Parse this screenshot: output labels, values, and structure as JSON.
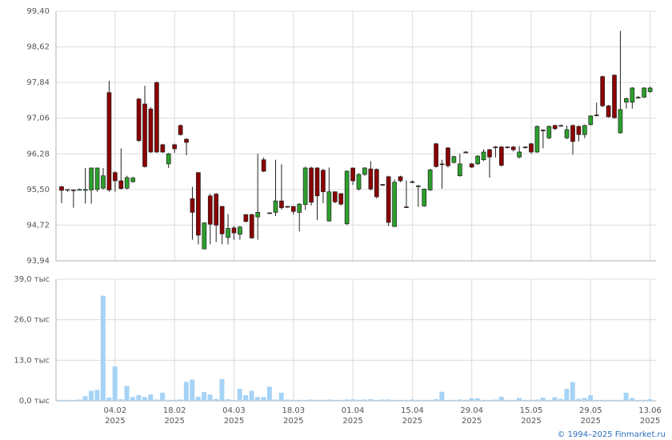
{
  "chart_data": {
    "type": "candlestick",
    "categories": [
      null,
      null,
      null,
      null,
      null,
      null,
      null,
      null,
      null,
      "04.02",
      null,
      null,
      null,
      null,
      null,
      null,
      null,
      null,
      null,
      "18.02",
      null,
      null,
      null,
      null,
      null,
      null,
      null,
      null,
      null,
      "04.03",
      null,
      null,
      null,
      null,
      null,
      null,
      null,
      null,
      null,
      "18.03",
      null,
      null,
      null,
      null,
      null,
      null,
      null,
      null,
      null,
      "01.04",
      null,
      null,
      null,
      null,
      null,
      null,
      null,
      null,
      null,
      "15.04",
      null,
      null,
      null,
      null,
      null,
      null,
      null,
      null,
      null,
      "29.04",
      null,
      null,
      null,
      null,
      null,
      null,
      null,
      null,
      null,
      "15.05",
      null,
      null,
      null,
      null,
      null,
      null,
      null,
      null,
      null,
      "29.05",
      null,
      null,
      null,
      null,
      null,
      null,
      null,
      null,
      null,
      "13.06"
    ],
    "x_sublabel": "2025",
    "open": [
      95.56,
      95.5,
      95.49,
      95.5,
      95.48,
      95.49,
      95.5,
      95.53,
      97.62,
      95.87,
      95.69,
      95.53,
      95.67,
      97.48,
      97.37,
      97.26,
      97.84,
      96.48,
      96.06,
      96.48,
      96.9,
      96.6,
      95.3,
      95.87,
      94.2,
      95.36,
      95.4,
      95.13,
      94.45,
      94.66,
      94.52,
      94.95,
      94.95,
      94.9,
      96.15,
      94.99,
      95.0,
      95.25,
      95.13,
      95.13,
      95.0,
      95.17,
      95.97,
      95.97,
      95.92,
      94.81,
      95.45,
      95.41,
      94.75,
      95.97,
      95.51,
      95.83,
      95.95,
      95.94,
      95.61,
      95.78,
      94.69,
      95.78,
      95.12,
      95.67,
      95.58,
      95.14,
      95.49,
      96.5,
      96.06,
      96.41,
      96.09,
      95.8,
      96.32,
      96.06,
      96.06,
      96.15,
      96.37,
      96.43,
      96.43,
      96.43,
      96.43,
      96.21,
      96.43,
      96.5,
      96.32,
      96.8,
      96.63,
      96.9,
      96.9,
      96.63,
      96.9,
      96.88,
      96.7,
      96.92,
      97.13,
      97.97,
      97.33,
      98.0,
      96.74,
      97.41,
      97.41,
      97.51,
      97.52,
      97.64
    ],
    "high": [
      95.58,
      95.5,
      95.5,
      95.52,
      95.97,
      95.98,
      95.98,
      95.97,
      97.88,
      95.9,
      96.4,
      95.8,
      95.78,
      97.5,
      97.77,
      97.3,
      97.86,
      96.5,
      96.3,
      96.5,
      96.92,
      96.62,
      95.56,
      95.88,
      94.78,
      95.41,
      95.42,
      95.14,
      94.96,
      94.7,
      94.7,
      94.96,
      94.97,
      96.28,
      96.2,
      95.0,
      96.15,
      96.05,
      95.14,
      95.14,
      95.2,
      96.0,
      96.0,
      95.99,
      95.95,
      95.98,
      95.46,
      95.42,
      95.92,
      95.98,
      95.86,
      95.99,
      96.12,
      95.96,
      95.62,
      95.8,
      95.72,
      95.8,
      95.7,
      95.7,
      95.6,
      95.52,
      95.95,
      96.52,
      96.15,
      96.43,
      96.24,
      96.28,
      96.34,
      96.08,
      96.25,
      96.38,
      96.39,
      96.45,
      96.45,
      96.44,
      96.45,
      96.45,
      96.44,
      96.52,
      96.9,
      96.82,
      96.9,
      96.92,
      96.92,
      96.9,
      96.92,
      96.9,
      96.92,
      97.12,
      97.4,
      97.99,
      97.35,
      98.02,
      98.97,
      97.51,
      97.74,
      97.54,
      97.74,
      97.75
    ],
    "low": [
      95.2,
      95.45,
      95.1,
      95.48,
      95.19,
      95.19,
      95.45,
      95.5,
      95.45,
      95.45,
      95.5,
      95.5,
      95.65,
      96.54,
      95.98,
      96.3,
      96.3,
      96.3,
      95.97,
      96.3,
      96.68,
      96.25,
      94.4,
      94.3,
      94.2,
      94.3,
      94.35,
      94.3,
      94.3,
      94.4,
      94.4,
      94.78,
      94.42,
      94.4,
      95.88,
      94.97,
      94.92,
      95.06,
      95.1,
      94.95,
      94.58,
      95.05,
      95.15,
      94.83,
      95.2,
      94.8,
      95.2,
      95.15,
      94.72,
      95.6,
      95.48,
      95.8,
      95.48,
      95.3,
      95.58,
      94.7,
      94.68,
      95.66,
      95.1,
      95.64,
      95.12,
      95.12,
      95.47,
      95.98,
      95.52,
      95.98,
      96.07,
      95.78,
      96.3,
      95.97,
      96.04,
      96.12,
      95.76,
      96.2,
      96.0,
      96.4,
      96.33,
      96.18,
      96.4,
      96.28,
      96.3,
      96.4,
      96.6,
      96.8,
      96.88,
      96.6,
      96.26,
      96.55,
      96.62,
      96.9,
      97.1,
      97.3,
      97.07,
      97.05,
      96.72,
      97.27,
      97.27,
      97.48,
      97.5,
      97.62
    ],
    "close": [
      95.48,
      95.5,
      95.48,
      95.5,
      95.5,
      95.97,
      95.97,
      95.8,
      95.49,
      95.69,
      95.52,
      95.76,
      95.75,
      96.57,
      96.0,
      96.32,
      96.32,
      96.32,
      96.28,
      96.39,
      96.7,
      96.53,
      95.0,
      94.5,
      94.77,
      94.74,
      94.72,
      94.53,
      94.65,
      94.55,
      94.68,
      94.8,
      94.44,
      95.0,
      95.9,
      94.98,
      95.25,
      95.1,
      95.12,
      95.02,
      95.18,
      95.97,
      95.22,
      95.36,
      95.45,
      95.45,
      95.23,
      95.18,
      95.9,
      95.69,
      95.83,
      95.97,
      95.51,
      95.34,
      95.6,
      94.78,
      95.66,
      95.69,
      95.11,
      95.66,
      95.58,
      95.51,
      95.93,
      96.0,
      96.05,
      96.02,
      96.22,
      96.06,
      96.31,
      95.99,
      96.23,
      96.32,
      96.21,
      96.42,
      96.03,
      96.42,
      96.37,
      96.32,
      96.42,
      96.32,
      96.88,
      96.79,
      96.88,
      96.83,
      96.89,
      96.81,
      96.55,
      96.7,
      96.9,
      97.11,
      97.12,
      97.33,
      97.09,
      97.07,
      97.25,
      97.49,
      97.72,
      97.52,
      97.72,
      97.72
    ],
    "volume": [
      0.3,
      0.3,
      0.3,
      0.4,
      1.5,
      3.2,
      3.5,
      33.7,
      1.0,
      11.0,
      0.5,
      4.8,
      1.2,
      1.8,
      1.2,
      2.0,
      0.4,
      2.6,
      0.3,
      0.3,
      0.4,
      6.1,
      6.8,
      1.3,
      2.8,
      2.0,
      0.6,
      7.0,
      0.5,
      0.3,
      3.8,
      1.8,
      3.2,
      1.2,
      1.2,
      4.5,
      0.4,
      2.6,
      0.4,
      0.3,
      0.3,
      0.3,
      0.4,
      0.3,
      0.3,
      0.4,
      0.3,
      0.3,
      0.4,
      0.5,
      0.3,
      0.4,
      0.5,
      0.3,
      0.4,
      0.4,
      0.3,
      0.3,
      0.3,
      0.4,
      0.3,
      0.3,
      0.3,
      0.5,
      2.9,
      0.3,
      0.3,
      0.4,
      0.3,
      0.8,
      0.8,
      0.3,
      0.3,
      0.4,
      1.3,
      0.3,
      0.3,
      0.9,
      0.3,
      0.3,
      0.4,
      1.0,
      0.3,
      1.1,
      0.6,
      3.8,
      6.0,
      0.6,
      0.9,
      1.8,
      0.3,
      0.3,
      0.3,
      0.3,
      0.3,
      2.6,
      0.9,
      0.3,
      0.3,
      0.5
    ],
    "ylim": [
      93.94,
      99.4
    ],
    "yticks": [
      {
        "value": 93.94,
        "label": "93,94"
      },
      {
        "value": 94.72,
        "label": "94,72"
      },
      {
        "value": 95.5,
        "label": "95,50"
      },
      {
        "value": 96.28,
        "label": "96,28"
      },
      {
        "value": 97.06,
        "label": "97,06"
      },
      {
        "value": 97.84,
        "label": "97,84"
      },
      {
        "value": 98.62,
        "label": "98,62"
      },
      {
        "value": 99.4,
        "label": "99,40"
      }
    ],
    "volume_ylim": [
      0,
      39
    ],
    "volume_yticks": [
      {
        "value": 0,
        "label": "0,0 тыс"
      },
      {
        "value": 13,
        "label": "13,0 тыс"
      },
      {
        "value": 26,
        "label": "26,0 тыс"
      },
      {
        "value": 39,
        "label": "39,0 тыс"
      }
    ],
    "up_color": "#2ca02c",
    "down_color": "#8b0000",
    "volume_color": "#a6d3f5",
    "grid": true
  },
  "footer": {
    "credit": "© 1994–2025 Finmarket.ru"
  }
}
